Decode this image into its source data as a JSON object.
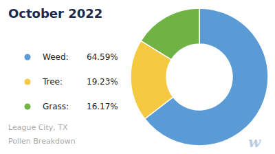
{
  "chart_data": {
    "type": "pie",
    "title": "October 2022",
    "subtitle": [
      "League City, TX",
      "Pollen Breakdown"
    ],
    "annotations": [
      "w"
    ],
    "categories": [
      "Weed:",
      "Tree:",
      "Grass:"
    ],
    "values": [
      64.59,
      19.23,
      16.17
    ],
    "value_labels": [
      "64.59%",
      "19.23%",
      "16.17%"
    ],
    "colors": [
      "#5B9BD5",
      "#F5C842",
      "#70B244"
    ],
    "legend": "left"
  }
}
